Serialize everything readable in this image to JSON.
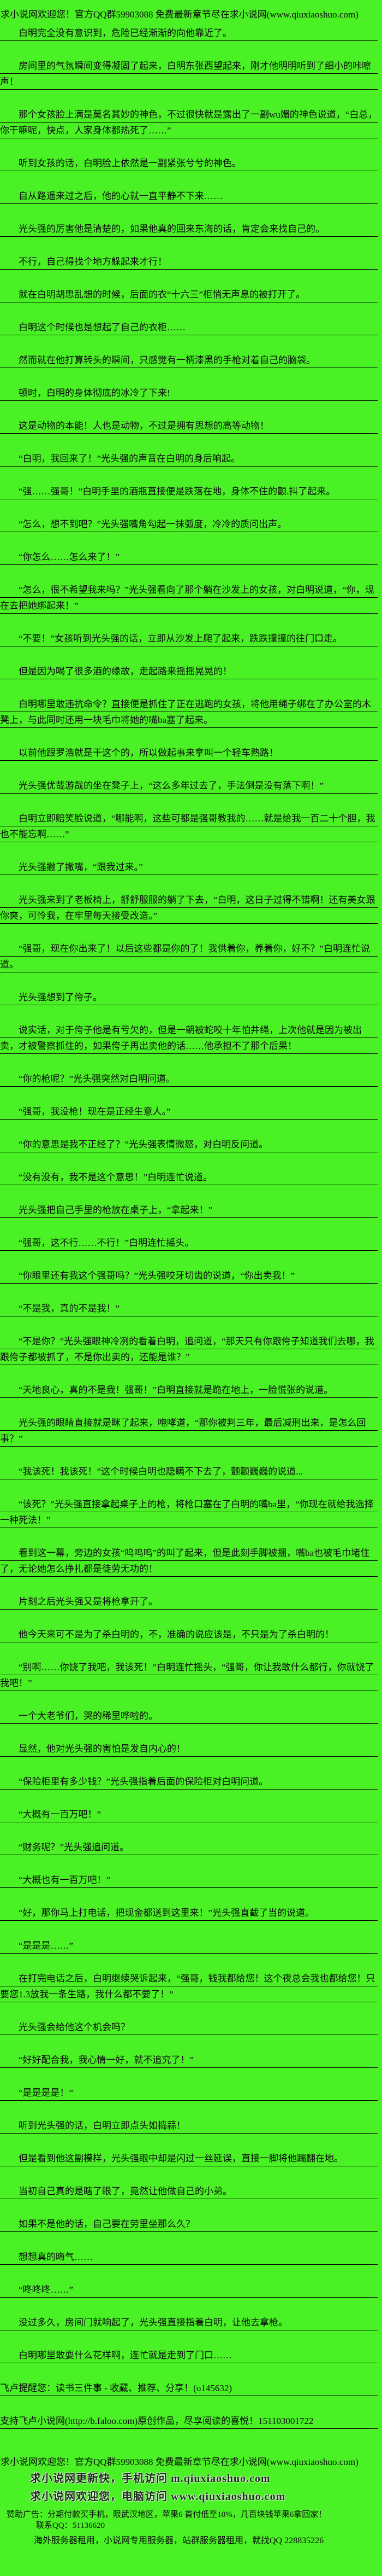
{
  "page": {
    "background_color": "#4af225",
    "text_color": "#0a0a0a",
    "rule_color": "#000000"
  },
  "header": {
    "text": "求小说网欢迎您！官方QQ群59903088 免费最新章节尽在求小说网(www.qiuxiaoshuo.com)"
  },
  "chapter": {
    "paragraphs": [
      "白明完全没有意识到，危险已经渐渐的向他靠近了。",
      "房间里的气氛瞬间变得凝固了起来，白明东张西望起来，刚才他明明听到了细小的咔嚓声！",
      "那个女孩脸上满是莫名其妙的神色，不过很快就是露出了一副wu媚的神色说道，“白总，你干嘛呢，快点，人家身体都热死了……”",
      "听到女孩的话，白明脸上依然是一副紧张兮兮的神色。",
      "自从路遥来过之后，他的心就一直平静不下来……",
      "光头强的厉害他是清楚的，如果他真的回来东海的话，肯定会来找自己的。",
      "不行，自己得找个地方躲起来才行！",
      "就在白明胡思乱想的时候，后面的衣“十六三”柜悄无声息的被打开了。",
      "白明这个时候也是想起了自己的衣柜……",
      "然而就在他打算转头的瞬间，只感觉有一柄漆黑的手枪对着自己的脑袋。",
      "顿时，白明的身体彻底的冰冷了下来!",
      "这是动物的本能！人也是动物，不过是拥有思想的高等动物！",
      "“白明，我回来了！”光头强的声音在白明的身后响起。",
      "“强……强哥！”白明手里的酒瓶直接便是跌落在地，身体不住的颤.抖了起来。",
      "“怎么，想不到吧？”光头强嘴角勾起一抹弧度，冷冷的质问出声。",
      "“你怎么……怎么来了！”",
      "“怎么，很不希望我来吗？”光头强看向了那个躺在沙发上的女孩，对白明说道，“你，现在去把她绑起来！”",
      "“不要！”女孩听到光头强的话，立即从沙发上爬了起来，跌跌撞撞的往门口走。",
      "但是因为喝了很多酒的缘故，走起路来摇摇晃晃的！",
      "白明哪里敢违抗命令？直接便是抓住了正在逃跑的女孩，将他用绳子绑在了办公室的木凳上，与此同时还用一块毛巾将她的嘴ba塞了起来。",
      "以前他跟罗浩就是干这个的，所以做起事来拿叫一个轻车熟路！",
      "光头强优哉游哉的坐在凳子上，“这么多年过去了，手法倒是没有落下啊！”",
      "白明立即赔笑脸说道，“哪能啊，这些可都是强哥教我的……就是给我一百二十个胆，我也不能忘啊……”",
      "光头强撇了撇嘴，“跟我过来。”",
      "光头强来到了老板椅上，舒舒服服的躺了下去，“白明，这日子过得不错啊！还有美女跟你爽，可怜我，在牢里每天接受改造。”",
      "“强哥，现在你出来了！以后这些都是你的了！我供着你，养着你，好不？”白明连忙说道。",
      "光头强想到了侉子。",
      "说实话，对于侉子他是有亏欠的，但是一朝被蛇咬十年怕井绳，上次他就是因为被出卖，才被警察抓住的，如果侉子再出卖他的话……他承担不了那个后果！",
      "“你的枪呢？”光头强突然对白明问道。",
      "“强哥，我没枪！现在是正经生意人。”",
      "“你的意思是我不正经了？”光头强表情微怒，对白明反问道。",
      "“没有没有，我不是这个意思！”白明连忙说道。",
      "光头强把自己手里的枪放在桌子上，“拿起来！”",
      "“强哥，这不行……不行！”白明连忙摇头。",
      "“你眼里还有我这个强哥吗？”光头强咬牙切齿的说道，“你出卖我！”",
      "“不是我，真的不是我！”",
      "“不是你？”光头强眼神冷冽的看着白明，追问道，“那天只有你跟侉子知道我们去哪，我跟侉子都被抓了，不是你出卖的，还能是谁？”",
      "“天地良心，真的不是我！强哥！”白明直接就是跪在地上，一脸慌张的说道。",
      "光头强的眼睛直接就是眯了起来，咆哮道，“那你被判三年，最后减刑出来，是怎么回事？”",
      "“我该死！我该死！”这个时候白明也隐瞒不下去了，颤颤巍巍的说道...",
      "“该死？”光头强直接拿起桌子上的枪，将枪口塞在了白明的嘴ba里，“你现在就给我选择一种死法！”",
      "看到这一幕，旁边的女孩“呜呜呜”的叫了起来，但是此刻手脚被捆，嘴ba也被毛巾堵住了，无论她怎么挣扎都是徒劳无功的！",
      "片刻之后光头强又是将枪拿开了。",
      "他今天来可不是为了杀白明的，不，准确的说应该是，不只是为了杀白明的！",
      "“别啊……你饶了我吧，我该死！”白明连忙摇头，“强哥，你让我敢什么都行，你就饶了我吧！”",
      "一个大老爷们，哭的稀里哗啦的。",
      "显然，他对光头强的害怕是发自内心的！",
      "“保险柜里有多少钱？”光头强指着后面的保险柜对白明问道。",
      "“大概有一百万吧！”",
      "“财务呢？”光头强追问道。",
      "“大概也有一百万吧！”",
      "“好，那你马上打电话，把现金都送到这里来！”光头强直截了当的说道。",
      "“是是是……”",
      "在打完电话之后，白明继续哭诉起来，“强哥，钱我都给您！这个夜总会我也都给您！只要您1.3放我一条生路，我什么都不要了！”",
      "光头强会给他这个机会吗？",
      "“好好配合我，我心情一好，就不追究了！”",
      "“是是是是！”",
      "听到光头强的话，白明立即点头如捣蒜！",
      "但是看到他这副模样，光头强眼中却是闪过一丝延误，直接一脚将他踹翻在地。",
      "当初自己真的是瞎了眼了，竟然让他做自己的小弟。",
      "如果不是他的话，自己要在劳里坐那么久？",
      "想想真的晦气……",
      "“咚咚咚……”",
      "没过多久，房间门就响起了，光头强直接指着白明，让他去拿枪。",
      "白明哪里敢耍什么花样啊，连忙就是走到了门口……"
    ],
    "notices": [
      "飞卢提醒您：读书三件事 - 收藏、推荐、分享！(o145632)",
      "支持飞卢小说网(http://b.faloo.com)原创作品，尽享阅读的喜悦！151103001722"
    ]
  },
  "footer": {
    "welcome_line": "求小说网欢迎您！官方QQ群59903088 免费最新章节尽在求小说网(www.qiuxiaoshuo.com)",
    "mobile_line": "求小说网更新快，手机访问 m.qiuxiaoshuo.com",
    "pc_line": "求小说网欢迎您，电脑访问 www.qiuxiaoshuo.com",
    "ad_line": "赞助广告：分期付款买手机，限武汉地区，苹果6 首付低至10%，几百块钱苹果6拿回家！",
    "ad_qq_line": "联系QQ：51136620",
    "server_line": "海外服务器租用，小说网专用服务器，站群服务器租用，就找QQ 228835226"
  }
}
